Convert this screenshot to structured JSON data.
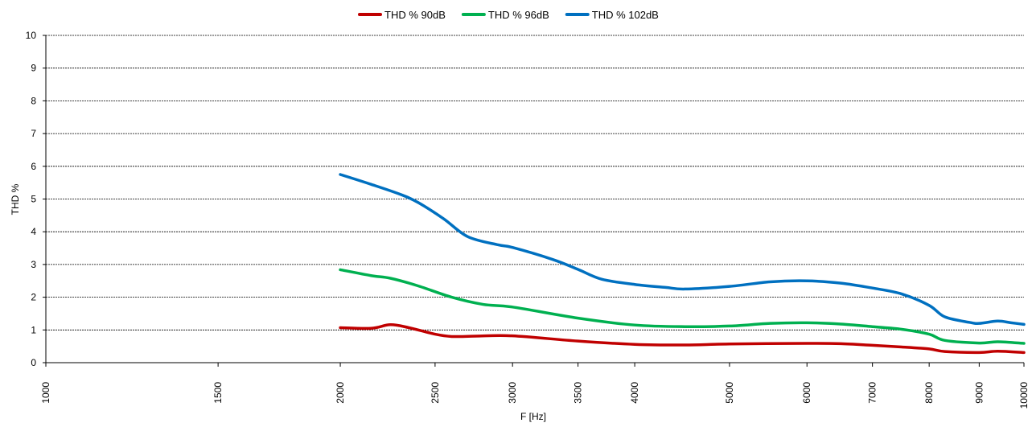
{
  "chart_data": {
    "type": "line",
    "x_scale": "log",
    "xlabel": "F [Hz]",
    "ylabel": "THD %",
    "xlim": [
      1000,
      10000
    ],
    "ylim": [
      0,
      10
    ],
    "x_ticks": [
      1000,
      1500,
      2000,
      2500,
      3000,
      3500,
      4000,
      5000,
      6000,
      7000,
      8000,
      9000,
      10000
    ],
    "y_ticks": [
      0,
      1,
      2,
      3,
      4,
      5,
      6,
      7,
      8,
      9,
      10
    ],
    "grid": "horizontal dashed",
    "legend_position": "top-center",
    "series": [
      {
        "name": "THD % 90dB",
        "color": "#c00000",
        "points": [
          [
            2000,
            1.07
          ],
          [
            2150,
            1.05
          ],
          [
            2250,
            1.16
          ],
          [
            2350,
            1.07
          ],
          [
            2500,
            0.87
          ],
          [
            2600,
            0.8
          ],
          [
            2750,
            0.81
          ],
          [
            3000,
            0.82
          ],
          [
            3500,
            0.66
          ],
          [
            4000,
            0.56
          ],
          [
            4500,
            0.54
          ],
          [
            5000,
            0.57
          ],
          [
            6000,
            0.59
          ],
          [
            6500,
            0.58
          ],
          [
            7000,
            0.53
          ],
          [
            7500,
            0.48
          ],
          [
            8000,
            0.42
          ],
          [
            8300,
            0.34
          ],
          [
            9000,
            0.31
          ],
          [
            9400,
            0.35
          ],
          [
            10000,
            0.31
          ]
        ]
      },
      {
        "name": "THD % 96dB",
        "color": "#00b050",
        "points": [
          [
            2000,
            2.84
          ],
          [
            2150,
            2.66
          ],
          [
            2250,
            2.58
          ],
          [
            2400,
            2.35
          ],
          [
            2600,
            2.0
          ],
          [
            2800,
            1.78
          ],
          [
            3000,
            1.7
          ],
          [
            3500,
            1.36
          ],
          [
            4000,
            1.15
          ],
          [
            4500,
            1.1
          ],
          [
            5000,
            1.12
          ],
          [
            5500,
            1.2
          ],
          [
            6000,
            1.22
          ],
          [
            6500,
            1.18
          ],
          [
            7000,
            1.1
          ],
          [
            7500,
            1.02
          ],
          [
            8000,
            0.87
          ],
          [
            8300,
            0.68
          ],
          [
            9000,
            0.6
          ],
          [
            9400,
            0.64
          ],
          [
            10000,
            0.59
          ]
        ]
      },
      {
        "name": "THD % 102dB",
        "color": "#0070c0",
        "points": [
          [
            2000,
            5.75
          ],
          [
            2150,
            5.45
          ],
          [
            2300,
            5.15
          ],
          [
            2400,
            4.9
          ],
          [
            2550,
            4.4
          ],
          [
            2700,
            3.85
          ],
          [
            2900,
            3.6
          ],
          [
            3000,
            3.52
          ],
          [
            3300,
            3.15
          ],
          [
            3500,
            2.85
          ],
          [
            3700,
            2.55
          ],
          [
            4000,
            2.39
          ],
          [
            4300,
            2.3
          ],
          [
            4500,
            2.25
          ],
          [
            5000,
            2.33
          ],
          [
            5500,
            2.47
          ],
          [
            6000,
            2.5
          ],
          [
            6500,
            2.43
          ],
          [
            7000,
            2.28
          ],
          [
            7500,
            2.1
          ],
          [
            8000,
            1.75
          ],
          [
            8300,
            1.4
          ],
          [
            8800,
            1.23
          ],
          [
            9000,
            1.2
          ],
          [
            9400,
            1.27
          ],
          [
            9700,
            1.22
          ],
          [
            10000,
            1.17
          ]
        ]
      }
    ]
  }
}
